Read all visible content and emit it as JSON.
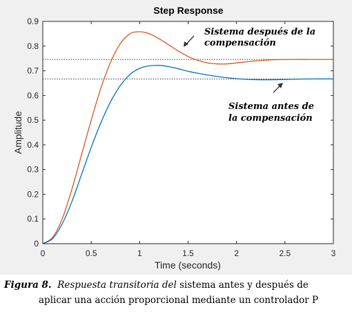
{
  "chart_data": {
    "type": "line",
    "title": "Step Response",
    "xlabel": "Time (seconds)",
    "ylabel": "Amplitude",
    "xlim": [
      0,
      3
    ],
    "ylim": [
      0,
      0.9
    ],
    "xticks": [
      0,
      0.5,
      1,
      1.5,
      2,
      2.5,
      3
    ],
    "xtick_labels": [
      "0",
      "0.5",
      "1",
      "1.5",
      "2",
      "2.5",
      "3"
    ],
    "yticks": [
      0,
      0.1,
      0.2,
      0.3,
      0.4,
      0.5,
      0.6,
      0.7,
      0.8,
      0.9
    ],
    "ytick_labels": [
      "0",
      "0.1",
      "0.2",
      "0.3",
      "0.4",
      "0.5",
      "0.6",
      "0.7",
      "0.8",
      "0.9"
    ],
    "grid": false,
    "series": [
      {
        "color": "#d95319",
        "x": [
          0,
          0.1,
          0.2,
          0.3,
          0.4,
          0.5,
          0.6,
          0.7,
          0.8,
          0.9,
          1.0,
          1.1,
          1.2,
          1.3,
          1.4,
          1.5,
          1.6,
          1.7,
          1.8,
          1.9,
          2.0,
          2.2,
          2.4,
          2.6,
          2.8,
          3.0
        ],
        "y": [
          0,
          0.025,
          0.1,
          0.22,
          0.36,
          0.5,
          0.63,
          0.735,
          0.81,
          0.85,
          0.858,
          0.85,
          0.83,
          0.805,
          0.78,
          0.758,
          0.742,
          0.732,
          0.728,
          0.728,
          0.732,
          0.74,
          0.745,
          0.746,
          0.746,
          0.746
        ],
        "steady_state": 0.746
      },
      {
        "color": "#0072bd",
        "x": [
          0,
          0.1,
          0.2,
          0.3,
          0.4,
          0.5,
          0.6,
          0.7,
          0.8,
          0.9,
          1.0,
          1.1,
          1.2,
          1.3,
          1.4,
          1.5,
          1.6,
          1.8,
          2.0,
          2.2,
          2.4,
          2.6,
          2.8,
          3.0
        ],
        "y": [
          0,
          0.02,
          0.08,
          0.17,
          0.28,
          0.39,
          0.49,
          0.575,
          0.64,
          0.685,
          0.71,
          0.72,
          0.722,
          0.717,
          0.708,
          0.698,
          0.69,
          0.677,
          0.668,
          0.664,
          0.664,
          0.666,
          0.667,
          0.667
        ],
        "steady_state": 0.667
      }
    ],
    "annotations": [
      {
        "lines": [
          "Sistema después de la",
          "compensación"
        ],
        "points_to_series": 0
      },
      {
        "lines": [
          "Sistema antes de",
          "la compensación"
        ],
        "points_to_series": 1
      }
    ]
  },
  "caption": {
    "label": "Figura 8.",
    "italic_part": "Respuesta transitoria del",
    "plain_part": " sistema antes y después de",
    "line2": "aplicar  una acción proporcional mediante un controlador P"
  }
}
